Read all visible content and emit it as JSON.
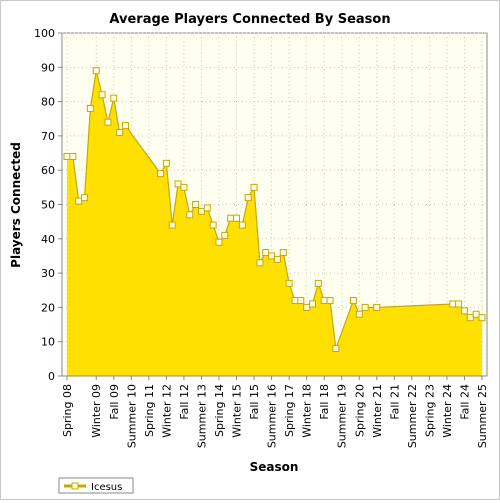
{
  "chart_data": {
    "type": "area",
    "title": "Average Players Connected By Season",
    "xlabel": "Season",
    "ylabel": "Players Connected",
    "ylim": [
      0,
      100
    ],
    "yticks": [
      0,
      10,
      20,
      30,
      40,
      50,
      60,
      70,
      80,
      90,
      100
    ],
    "grid": true,
    "legend_position": "bottom-left",
    "colors": {
      "fill": "#ffe000",
      "line": "#c8a800",
      "marker_fill": "#ffffe0",
      "plot_bg": "#fffff0",
      "grid": "#c8c8c8"
    },
    "tick_labels": [
      {
        "label": "Spring 08",
        "x": 0
      },
      {
        "label": "Winter 09",
        "x": 5
      },
      {
        "label": "Fall 09",
        "x": 8
      },
      {
        "label": "Summer 10",
        "x": 11
      },
      {
        "label": "Spring 11",
        "x": 14
      },
      {
        "label": "Winter 12",
        "x": 17
      },
      {
        "label": "Fall 12",
        "x": 20
      },
      {
        "label": "Summer 13",
        "x": 23
      },
      {
        "label": "Spring 14",
        "x": 26
      },
      {
        "label": "Winter 15",
        "x": 29
      },
      {
        "label": "Fall 15",
        "x": 32
      },
      {
        "label": "Summer 16",
        "x": 35
      },
      {
        "label": "Spring 17",
        "x": 38
      },
      {
        "label": "Winter 18",
        "x": 41
      },
      {
        "label": "Fall 18",
        "x": 44
      },
      {
        "label": "Summer 19",
        "x": 47
      },
      {
        "label": "Spring 20",
        "x": 50
      },
      {
        "label": "Winter 21",
        "x": 53
      },
      {
        "label": "Fall 21",
        "x": 56
      },
      {
        "label": "Summer 22",
        "x": 59
      },
      {
        "label": "Spring 23",
        "x": 62
      },
      {
        "label": "Winter 24",
        "x": 65
      },
      {
        "label": "Fall 24",
        "x": 68
      },
      {
        "label": "Summer 25",
        "x": 71
      }
    ],
    "series": [
      {
        "name": "Icesus",
        "points": [
          {
            "x": 0,
            "y": 64
          },
          {
            "x": 1,
            "y": 64
          },
          {
            "x": 2,
            "y": 51
          },
          {
            "x": 3,
            "y": 52
          },
          {
            "x": 4,
            "y": 78
          },
          {
            "x": 5,
            "y": 89
          },
          {
            "x": 6,
            "y": 82
          },
          {
            "x": 7,
            "y": 74
          },
          {
            "x": 8,
            "y": 81
          },
          {
            "x": 9,
            "y": 71
          },
          {
            "x": 10,
            "y": 73
          },
          {
            "x": 16,
            "y": 59
          },
          {
            "x": 17,
            "y": 62
          },
          {
            "x": 18,
            "y": 44
          },
          {
            "x": 19,
            "y": 56
          },
          {
            "x": 20,
            "y": 55
          },
          {
            "x": 21,
            "y": 47
          },
          {
            "x": 22,
            "y": 50
          },
          {
            "x": 23,
            "y": 48
          },
          {
            "x": 24,
            "y": 49
          },
          {
            "x": 25,
            "y": 44
          },
          {
            "x": 26,
            "y": 39
          },
          {
            "x": 27,
            "y": 41
          },
          {
            "x": 28,
            "y": 46
          },
          {
            "x": 29,
            "y": 46
          },
          {
            "x": 30,
            "y": 44
          },
          {
            "x": 31,
            "y": 52
          },
          {
            "x": 32,
            "y": 55
          },
          {
            "x": 33,
            "y": 33
          },
          {
            "x": 34,
            "y": 36
          },
          {
            "x": 35,
            "y": 35
          },
          {
            "x": 36,
            "y": 34
          },
          {
            "x": 37,
            "y": 36
          },
          {
            "x": 38,
            "y": 27
          },
          {
            "x": 39,
            "y": 22
          },
          {
            "x": 40,
            "y": 22
          },
          {
            "x": 41,
            "y": 20
          },
          {
            "x": 42,
            "y": 21
          },
          {
            "x": 43,
            "y": 27
          },
          {
            "x": 44,
            "y": 22
          },
          {
            "x": 45,
            "y": 22
          },
          {
            "x": 46,
            "y": 8
          },
          {
            "x": 49,
            "y": 22
          },
          {
            "x": 50,
            "y": 18
          },
          {
            "x": 51,
            "y": 20
          },
          {
            "x": 53,
            "y": 20
          },
          {
            "x": 66,
            "y": 21
          },
          {
            "x": 67,
            "y": 21
          },
          {
            "x": 68,
            "y": 19
          },
          {
            "x": 69,
            "y": 17
          },
          {
            "x": 70,
            "y": 18
          },
          {
            "x": 71,
            "y": 17
          }
        ]
      }
    ]
  }
}
